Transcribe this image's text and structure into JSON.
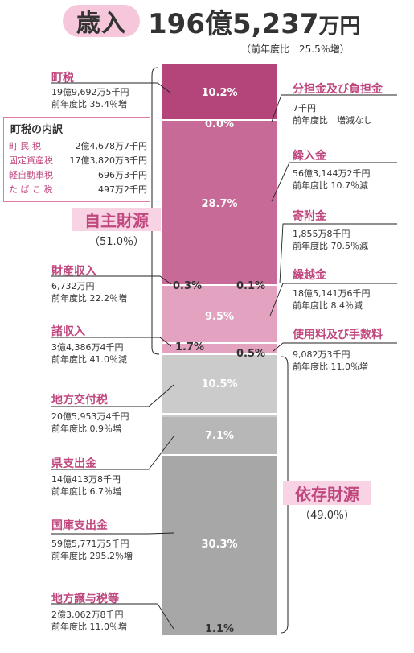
{
  "header": {
    "title": "歳入",
    "amount_main": "196億5,237",
    "amount_unit": "万円",
    "yoy": "（前年度比　25.5％増）"
  },
  "left_items": [
    {
      "key": "chouzei",
      "name": "町税",
      "amount": "19億9,692万5千円",
      "change": "前年度比 35.4％増"
    },
    {
      "key": "zaisan",
      "name": "財産収入",
      "amount": "6,732万円",
      "change": "前年度比 22.2％増"
    },
    {
      "key": "shoshu",
      "name": "諸収入",
      "amount": "3億4,386万4千円",
      "change": "前年度比 41.0％減"
    },
    {
      "key": "kofuzei",
      "name": "地方交付税",
      "amount": "20億5,953万4千円",
      "change": "前年度比 0.9％増"
    },
    {
      "key": "ken",
      "name": "県支出金",
      "amount": "14億413万8千円",
      "change": "前年度比 6.7％増"
    },
    {
      "key": "kuni",
      "name": "国庫支出金",
      "amount": "59億5,771万5千円",
      "change": "前年度比 295.2％増"
    },
    {
      "key": "joyo",
      "name": "地方譲与税等",
      "amount": "2億3,062万8千円",
      "change": "前年度比 11.0％増"
    }
  ],
  "right_items": [
    {
      "key": "buntan",
      "name": "分担金及び負担金",
      "amount": "7千円",
      "change": "前年度比　増減なし"
    },
    {
      "key": "kurire",
      "name": "繰入金",
      "amount": "56億3,144万2千円",
      "change": "前年度比 10.7％減"
    },
    {
      "key": "kifu",
      "name": "寄附金",
      "amount": "1,855万8千円",
      "change": "前年度比 70.5％減"
    },
    {
      "key": "kurikoshi",
      "name": "繰越金",
      "amount": "18億5,141万6千円",
      "change": "前年度比 8.4％減"
    },
    {
      "key": "shiyoryo",
      "name": "使用料及び手数料",
      "amount": "9,082万3千円",
      "change": "前年度比 11.0％増"
    }
  ],
  "breakdown": {
    "title": "町税の内訳",
    "rows": [
      {
        "label": "町 民 税",
        "value": "2億4,678万7千円"
      },
      {
        "label": "固定資産税",
        "value": "17億3,820万3千円"
      },
      {
        "label": "軽自動車税",
        "value": "696万3千円"
      },
      {
        "label": "た ば こ 税",
        "value": "497万2千円"
      }
    ]
  },
  "groups": {
    "jishu": {
      "name": "自主財源",
      "pct": "（51.0％）"
    },
    "izon": {
      "name": "依存財源",
      "pct": "（49.0％）"
    }
  },
  "chart_data": {
    "type": "bar",
    "title": "歳入",
    "stacked": true,
    "unit": "%",
    "segments": [
      {
        "name": "町税",
        "value": 10.2,
        "label": "10.2%",
        "color": "#b3457a"
      },
      {
        "name": "分担金及び負担金",
        "value": 0.0,
        "label": "0.0%",
        "color": "#b3457a"
      },
      {
        "name": "繰入金",
        "value": 28.7,
        "label": "28.7%",
        "color": "#c86a98"
      },
      {
        "name": "財産収入",
        "value": 0.3,
        "label": "0.3%",
        "color": "#c86a98"
      },
      {
        "name": "寄附金",
        "value": 0.1,
        "label": "0.1%",
        "color": "#c86a98"
      },
      {
        "name": "繰越金",
        "value": 9.5,
        "label": "9.5%",
        "color": "#e2a2c0"
      },
      {
        "name": "諸収入",
        "value": 1.7,
        "label": "1.7%",
        "color": "#e2a2c0"
      },
      {
        "name": "使用料及び手数料",
        "value": 0.5,
        "label": "0.5%",
        "color": "#e2a2c0"
      },
      {
        "name": "地方交付税",
        "value": 10.5,
        "label": "10.5%",
        "color": "#cbcbcb"
      },
      {
        "name": "県支出金",
        "value": 7.1,
        "label": "7.1%",
        "color": "#b7b7b7"
      },
      {
        "name": "国庫支出金",
        "value": 30.3,
        "label": "30.3%",
        "color": "#a7a7a7"
      },
      {
        "name": "地方譲与税等",
        "value": 1.1,
        "label": "1.1%",
        "color": "#a7a7a7"
      }
    ],
    "groups": [
      {
        "name": "自主財源",
        "value": 51.0
      },
      {
        "name": "依存財源",
        "value": 49.0
      }
    ]
  }
}
